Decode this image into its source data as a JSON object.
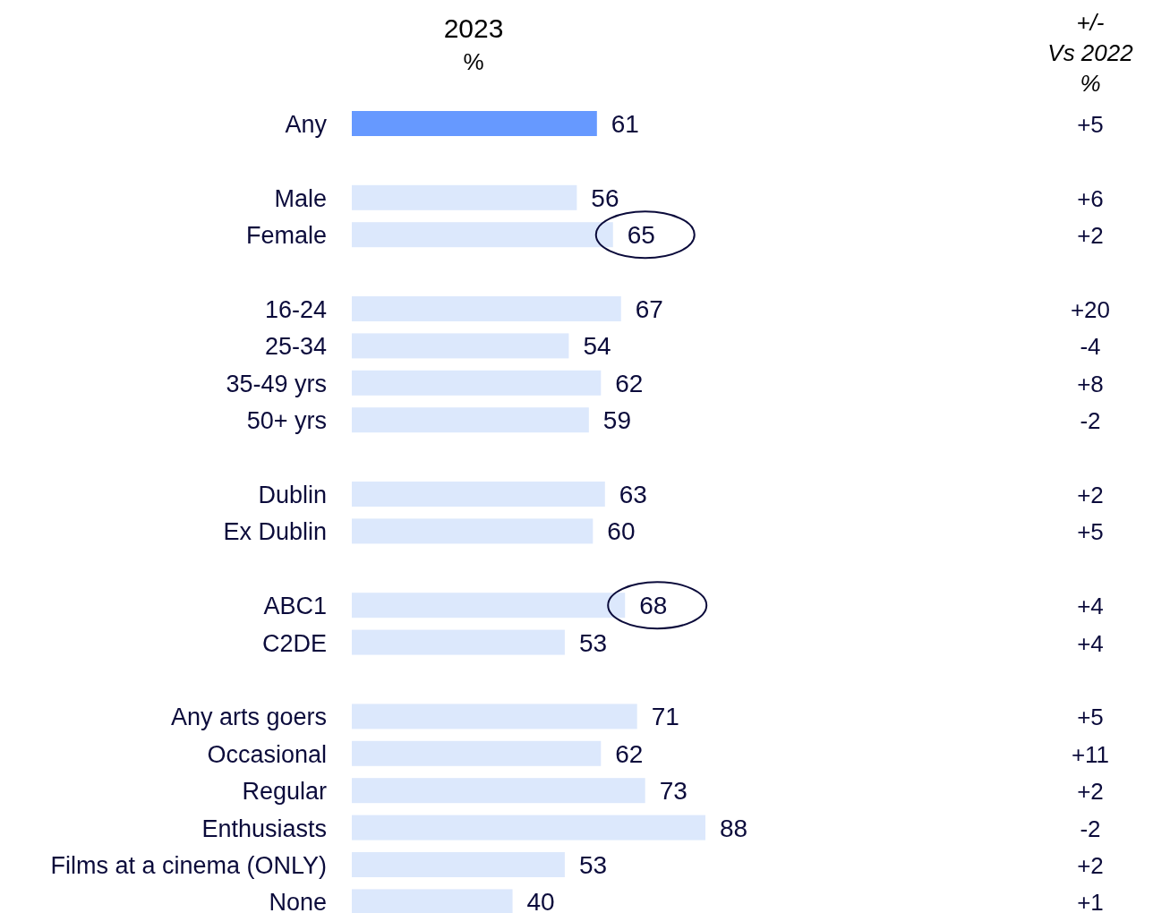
{
  "chart_data": {
    "type": "bar",
    "orientation": "horizontal",
    "title": "2023",
    "subtitle": "%",
    "categories": [
      "Any",
      null,
      "Male",
      "Female",
      null,
      "16-24",
      "25-34",
      "35-49 yrs",
      "50+ yrs",
      null,
      "Dublin",
      "Ex Dublin",
      null,
      "ABC1",
      "C2DE",
      null,
      "Any arts goers",
      "Occasional",
      "Regular",
      "Enthusiasts",
      "Films at a cinema  (ONLY)",
      "None"
    ],
    "values": [
      61,
      null,
      56,
      65,
      null,
      67,
      54,
      62,
      59,
      null,
      63,
      60,
      null,
      68,
      53,
      null,
      71,
      62,
      73,
      88,
      53,
      40
    ],
    "colors": [
      "#6699ff",
      null,
      "#dce8fc",
      "#dce8fc",
      null,
      "#dce8fc",
      "#dce8fc",
      "#dce8fc",
      "#dce8fc",
      null,
      "#dce8fc",
      "#dce8fc",
      null,
      "#dce8fc",
      "#dce8fc",
      null,
      "#dce8fc",
      "#dce8fc",
      "#dce8fc",
      "#dce8fc",
      "#dce8fc",
      "#dce8fc"
    ],
    "data_labels": true,
    "annotations": [
      "+/-\nVs 2022\n%",
      "+5",
      "+6",
      "+2",
      "+20",
      "-4",
      "+8",
      "-2",
      "+2",
      "+5",
      "+4",
      "+4",
      "+5",
      "+11",
      "+2",
      "-2",
      "+2",
      "+1"
    ]
  }
}
